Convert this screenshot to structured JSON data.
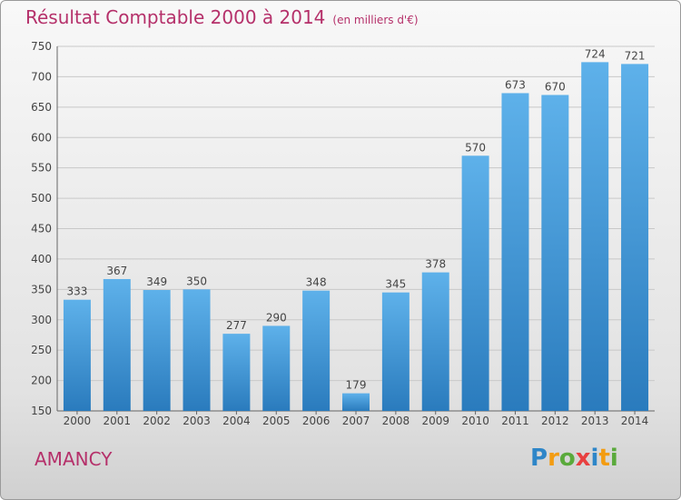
{
  "title": "Résultat Comptable 2000 à 2014",
  "subtitle": "(en milliers d'€)",
  "commune": "AMANCY",
  "logo": {
    "text": "Proxiti",
    "letters": [
      {
        "char": "P",
        "color": "#2e86c8"
      },
      {
        "char": "r",
        "color": "#f39c12"
      },
      {
        "char": "o",
        "color": "#5aaa3c"
      },
      {
        "char": "x",
        "color": "#e84040"
      },
      {
        "char": "i",
        "color": "#2e86c8"
      },
      {
        "char": "t",
        "color": "#f39c12"
      },
      {
        "char": "i",
        "color": "#5aaa3c"
      }
    ]
  },
  "colors": {
    "title": "#b5306a",
    "bar_top": "#5eb1ea",
    "bar_bottom": "#2a7bbd",
    "grid": "#c8c8c8"
  },
  "chart_data": {
    "type": "bar",
    "categories": [
      "2000",
      "2001",
      "2002",
      "2003",
      "2004",
      "2005",
      "2006",
      "2007",
      "2008",
      "2009",
      "2010",
      "2011",
      "2012",
      "2013",
      "2014"
    ],
    "values": [
      333,
      367,
      349,
      350,
      277,
      290,
      348,
      179,
      345,
      378,
      570,
      673,
      670,
      724,
      721
    ],
    "ylim": [
      150,
      750
    ],
    "yticks": [
      150,
      200,
      250,
      300,
      350,
      400,
      450,
      500,
      550,
      600,
      650,
      700,
      750
    ],
    "grid": true
  }
}
